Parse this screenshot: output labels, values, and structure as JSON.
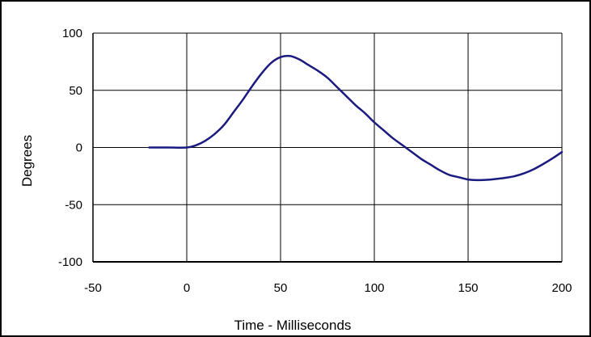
{
  "chart_data": {
    "type": "line",
    "title": "",
    "xlabel": "Time - Milliseconds",
    "ylabel": "Degrees",
    "xlim": [
      -50,
      200
    ],
    "ylim": [
      -100,
      100
    ],
    "xticks": [
      -50,
      0,
      50,
      100,
      150,
      200
    ],
    "yticks": [
      100,
      50,
      0,
      -50,
      -100
    ],
    "x_tick_labels": [
      "-50",
      "0",
      "50",
      "100",
      "150",
      "200"
    ],
    "y_tick_labels": [
      "100",
      "50",
      "0",
      "-50",
      "-100"
    ],
    "grid": "vertical and horizontal major gridlines",
    "legend": "none",
    "colors": {
      "series": "#1a1a80",
      "grid": "#000000",
      "frame": "#000000"
    },
    "series": [
      {
        "x": [
          -20,
          -10,
          0,
          5,
          10,
          15,
          20,
          25,
          30,
          35,
          40,
          45,
          50,
          55,
          60,
          65,
          70,
          75,
          80,
          85,
          90,
          95,
          100,
          105,
          110,
          115,
          120,
          125,
          130,
          135,
          140,
          145,
          150,
          155,
          160,
          165,
          170,
          175,
          180,
          185,
          190,
          195,
          200
        ],
        "y": [
          0,
          0,
          0,
          2,
          6,
          12,
          20,
          31,
          42,
          54,
          65,
          74,
          79,
          80,
          77,
          72,
          67,
          61,
          53,
          45,
          37,
          30,
          22,
          15,
          8,
          2,
          -4,
          -10,
          -15,
          -20,
          -24,
          -26,
          -28,
          -28.5,
          -28.3,
          -27.5,
          -26.5,
          -25,
          -22.5,
          -19,
          -14.5,
          -9.5,
          -4
        ]
      }
    ]
  }
}
